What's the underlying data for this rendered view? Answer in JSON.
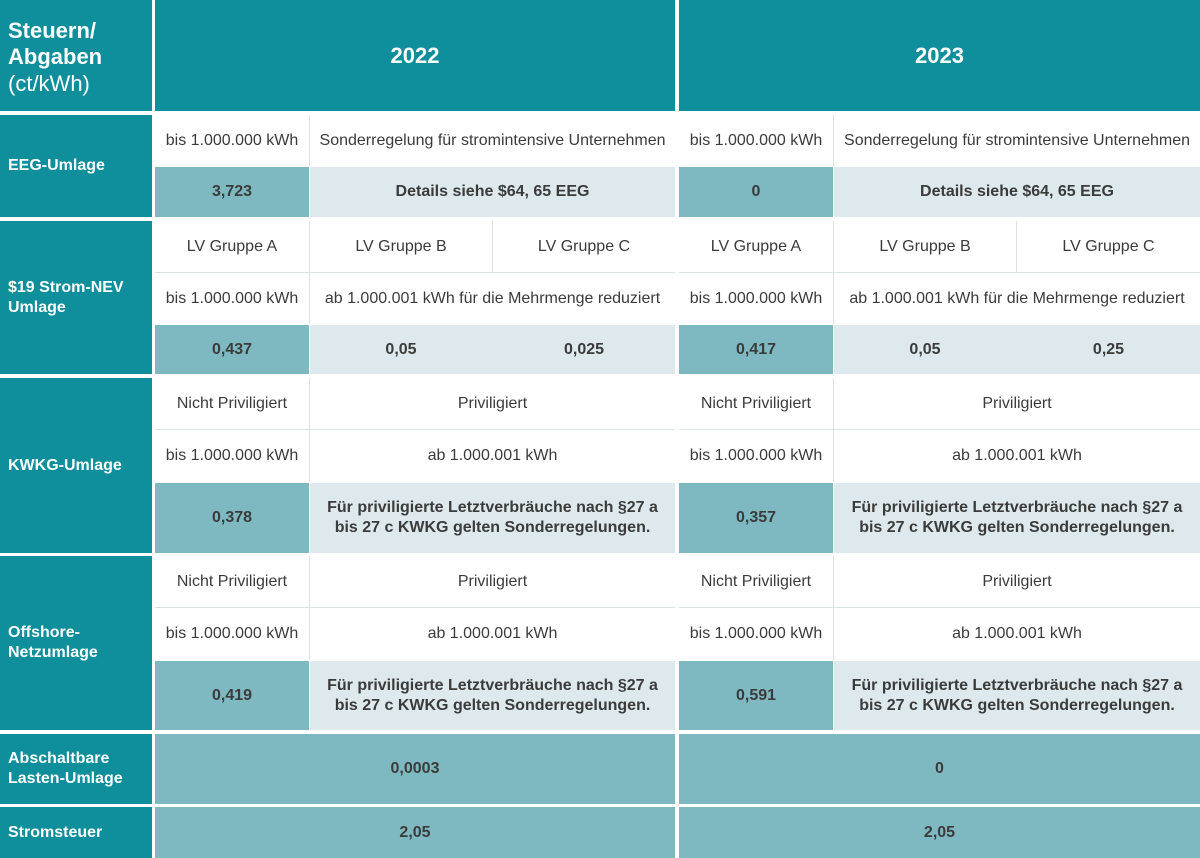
{
  "header": {
    "corner_line1": "Steuern/",
    "corner_line2": "Abgaben",
    "corner_line3": "(ct/kWh)",
    "year1": "2022",
    "year2": "2023"
  },
  "eeg": {
    "label": "EEG-Umlage",
    "col_basic": "bis 1.000.000 kWh",
    "col_special": "Sonderregelung für stromintensive Unternehmen",
    "value_2022": "3,723",
    "value_2023": "0",
    "details": "Details siehe $64, 65 EEG"
  },
  "nev": {
    "label": "$19 Strom-NEV Umlage",
    "group_a": "LV Gruppe A",
    "group_b": "LV Gruppe B",
    "group_c": "LV Gruppe C",
    "col_basic": "bis 1.000.000 kWh",
    "col_reduced": "ab 1.000.001 kWh für die Mehrmenge reduziert",
    "a_2022": "0,437",
    "b_2022": "0,05",
    "c_2022": "0,025",
    "a_2023": "0,417",
    "b_2023": "0,05",
    "c_2023": "0,25"
  },
  "kwkg": {
    "label": "KWKG-Umlage",
    "not_priv": "Nicht Priviligiert",
    "priv": "Priviligiert",
    "col_basic": "bis 1.000.000 kWh",
    "col_above": "ab 1.000.001 kWh",
    "value_2022": "0,378",
    "value_2023": "0,357",
    "note": "Für priviligierte Letztverbräuche nach §27 a bis 27 c KWKG gelten Sonderregelungen."
  },
  "offshore": {
    "label": "Offshore-Netzumlage",
    "not_priv": "Nicht Priviligiert",
    "priv": "Priviligiert",
    "col_basic": "bis 1.000.000 kWh",
    "col_above": "ab 1.000.001 kWh",
    "value_2022": "0,419",
    "value_2023": "0,591",
    "note": "Für priviligierte Letztverbräuche nach §27 a bis 27 c KWKG gelten Sonderregelungen."
  },
  "abschalt": {
    "label": "Abschaltbare Lasten-Umlage",
    "value_2022": "0,0003",
    "value_2023": "0"
  },
  "stromsteuer": {
    "label": "Stromsteuer",
    "value_2022": "2,05",
    "value_2023": "2,05"
  }
}
